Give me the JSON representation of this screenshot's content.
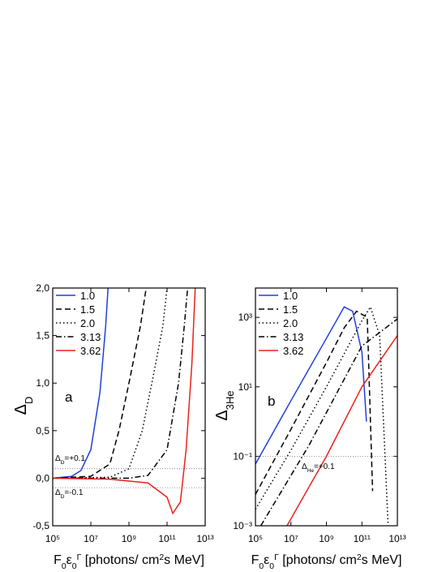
{
  "chart_data": [
    {
      "type": "line",
      "panel_label": "a",
      "xlabel": [
        "F",
        "0",
        "ε",
        "0",
        "Γ",
        " [photons/ cm",
        "2",
        "s MeV]"
      ],
      "ylabel": [
        "Δ",
        "D"
      ],
      "xscale": "log",
      "yscale": "linear",
      "xlim": [
        100000,
        10000000000000
      ],
      "ylim": [
        -0.5,
        2.0
      ],
      "xticks": [
        {
          "value": 100000,
          "label": "10⁵"
        },
        {
          "value": 10000000,
          "label": "10⁷"
        },
        {
          "value": 1000000000,
          "label": "10⁹"
        },
        {
          "value": 100000000000,
          "label": "10¹¹"
        },
        {
          "value": 10000000000000,
          "label": "10¹³"
        }
      ],
      "yticks": [
        {
          "value": -0.5,
          "label": "-0,5"
        },
        {
          "value": 0.0,
          "label": "0,0"
        },
        {
          "value": 0.5,
          "label": "0,5"
        },
        {
          "value": 1.0,
          "label": "1,0"
        },
        {
          "value": 1.5,
          "label": "1,5"
        },
        {
          "value": 2.0,
          "label": "2,0"
        }
      ],
      "hlines": [
        0.1,
        -0.1
      ],
      "annotations": [
        [
          "Δ",
          "D",
          "=+0.1"
        ],
        [
          "Δ",
          "D",
          "=-0.1"
        ]
      ],
      "series": [
        {
          "name": "1.0",
          "color": "#1f3fe0",
          "dash": "solid",
          "x": [
            100000,
            1000000,
            3000000,
            10000000,
            30000000,
            60000000,
            80000000
          ],
          "values": [
            0.0,
            0.02,
            0.08,
            0.3,
            0.9,
            1.6,
            2.0
          ]
        },
        {
          "name": "1.5",
          "color": "#000000",
          "dash": "dashed",
          "x": [
            100000,
            10000000,
            100000000,
            300000000,
            1000000000,
            4000000000,
            8000000000
          ],
          "values": [
            0.0,
            0.02,
            0.15,
            0.5,
            1.0,
            1.6,
            2.0
          ]
        },
        {
          "name": "2.0",
          "color": "#000000",
          "dash": "dotted",
          "x": [
            100000,
            100000000,
            1000000000,
            5000000000,
            20000000000,
            60000000000,
            100000000000
          ],
          "values": [
            0.0,
            0.01,
            0.1,
            0.5,
            1.1,
            1.6,
            2.0
          ]
        },
        {
          "name": "3.13",
          "color": "#000000",
          "dash": "dashdot",
          "x": [
            100000,
            1000000000,
            10000000000,
            100000000000,
            400000000000,
            800000000000,
            1200000000000
          ],
          "values": [
            0.0,
            0.0,
            0.03,
            0.3,
            1.0,
            1.6,
            2.0
          ]
        },
        {
          "name": "3.62",
          "color": "#e8221c",
          "dash": "solid",
          "x": [
            100000,
            100000000,
            10000000000,
            100000000000,
            200000000000,
            500000000000,
            1000000000000,
            2000000000000,
            3000000000000
          ],
          "values": [
            0.0,
            -0.01,
            -0.05,
            -0.2,
            -0.37,
            -0.25,
            0.3,
            1.2,
            2.0
          ]
        }
      ]
    },
    {
      "type": "line",
      "panel_label": "b",
      "xlabel": [
        "F",
        "0",
        "ε",
        "0",
        "Γ",
        " [photons/ cm",
        "2",
        "s MeV]"
      ],
      "ylabel": [
        "Δ",
        "3",
        "He"
      ],
      "xscale": "log",
      "yscale": "log",
      "xlim": [
        100000,
        10000000000000
      ],
      "ylim": [
        0.001,
        7000
      ],
      "xticks": [
        {
          "value": 100000,
          "label": "10⁵"
        },
        {
          "value": 10000000,
          "label": "10⁷"
        },
        {
          "value": 1000000000,
          "label": "10⁹"
        },
        {
          "value": 100000000000,
          "label": "10¹¹"
        },
        {
          "value": 10000000000000,
          "label": "10¹³"
        }
      ],
      "yticks": [
        {
          "value": 0.001,
          "label": "10⁻³"
        },
        {
          "value": 0.1,
          "label": "10⁻¹"
        },
        {
          "value": 10,
          "label": "10¹"
        },
        {
          "value": 1000,
          "label": "10³"
        }
      ],
      "hlines": [
        0.1
      ],
      "annotations": [
        [
          "Δ",
          "He",
          "=+0.1"
        ]
      ],
      "series": [
        {
          "name": "1.0",
          "color": "#1f3fe0",
          "dash": "solid",
          "x": [
            100000,
            10000000,
            1000000000,
            10000000000,
            30000000000,
            100000000000,
            180000000000
          ],
          "values": [
            0.06,
            4,
            250,
            2000,
            1500,
            100,
            1
          ]
        },
        {
          "name": "1.5",
          "color": "#000000",
          "dash": "dashed",
          "x": [
            100000,
            10000000,
            1000000000,
            10000000000,
            50000000000,
            200000000000,
            400000000000
          ],
          "values": [
            0.008,
            0.6,
            50,
            500,
            1500,
            1000,
            0.01
          ]
        },
        {
          "name": "2.0",
          "color": "#000000",
          "dash": "dotted",
          "x": [
            100000,
            10000000,
            1000000000,
            100000000000,
            300000000000,
            1000000000000,
            3000000000000
          ],
          "values": [
            0.003,
            0.15,
            10,
            800,
            2000,
            300,
            0.001
          ]
        },
        {
          "name": "3.13",
          "color": "#000000",
          "dash": "dashdot",
          "x": [
            200000,
            100000000,
            100000000000,
            10000000000000
          ],
          "values": [
            0.001,
            0.2,
            150,
            900
          ]
        },
        {
          "name": "3.62",
          "color": "#e8221c",
          "dash": "solid",
          "x": [
            6000000,
            1000000000,
            100000000000,
            10000000000000
          ],
          "values": [
            0.001,
            0.1,
            10,
            300
          ]
        }
      ]
    }
  ]
}
